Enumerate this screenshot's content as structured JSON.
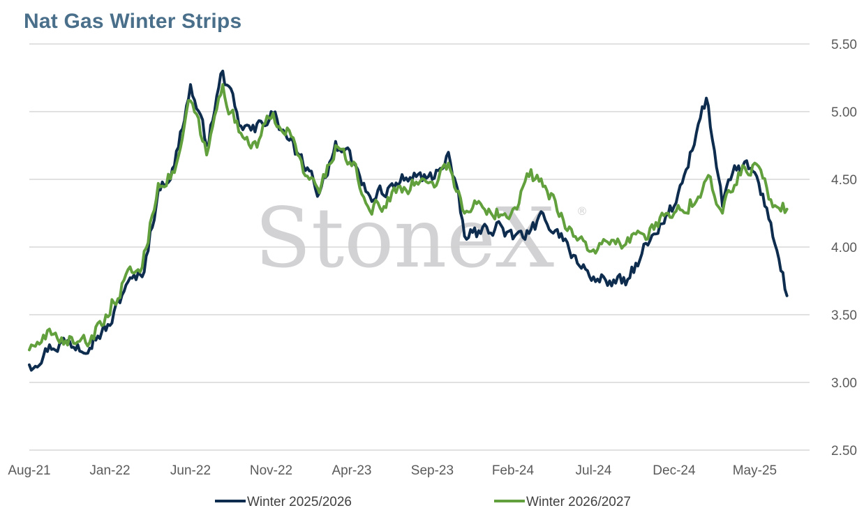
{
  "chart_data": {
    "type": "line",
    "title": "Nat Gas Winter Strips",
    "xlabel": "",
    "ylabel": "",
    "ylim": [
      2.5,
      5.5
    ],
    "yticks": [
      "5.50",
      "5.00",
      "4.50",
      "4.00",
      "3.50",
      "3.00",
      "2.50"
    ],
    "x_tick_labels": [
      "Aug-21",
      "Jan-22",
      "Jun-22",
      "Nov-22",
      "Apr-23",
      "Sep-23",
      "Feb-24",
      "Jul-24",
      "Dec-24",
      "May-25"
    ],
    "x_range": [
      "Aug-21",
      "Jul-25"
    ],
    "grid": "horizontal",
    "legend": "bottom",
    "watermark": "StoneX",
    "watermark_mark": "®",
    "series": [
      {
        "name": "Winter 2025/2026",
        "color": "#0d2c4e",
        "points": [
          [
            "Aug-21",
            3.13
          ],
          [
            "Sep-21",
            3.25
          ],
          [
            "Oct-21",
            3.3
          ],
          [
            "Nov-21",
            3.28
          ],
          [
            "Dec-21",
            3.34
          ],
          [
            "Jan-22",
            3.42
          ],
          [
            "Feb-22",
            3.72
          ],
          [
            "Mar-22",
            3.78
          ],
          [
            "Apr-22",
            4.42
          ],
          [
            "May-22",
            4.6
          ],
          [
            "Jun-22",
            5.2
          ],
          [
            "Jul-22",
            4.75
          ],
          [
            "Aug-22",
            5.3
          ],
          [
            "Sep-22",
            4.9
          ],
          [
            "Oct-22",
            4.85
          ],
          [
            "Nov-22",
            5.0
          ],
          [
            "Dec-22",
            4.8
          ],
          [
            "Jan-23",
            4.6
          ],
          [
            "Feb-23",
            4.4
          ],
          [
            "Mar-23",
            4.78
          ],
          [
            "Apr-23",
            4.62
          ],
          [
            "May-23",
            4.4
          ],
          [
            "Jun-23",
            4.38
          ],
          [
            "Jul-23",
            4.48
          ],
          [
            "Aug-23",
            4.52
          ],
          [
            "Sep-23",
            4.5
          ],
          [
            "Oct-23",
            4.7
          ],
          [
            "Nov-23",
            4.08
          ],
          [
            "Dec-23",
            4.1
          ],
          [
            "Jan-24",
            4.18
          ],
          [
            "Feb-24",
            4.06
          ],
          [
            "Mar-24",
            4.1
          ],
          [
            "Apr-24",
            4.2
          ],
          [
            "May-24",
            4.1
          ],
          [
            "Jun-24",
            3.88
          ],
          [
            "Jul-24",
            3.78
          ],
          [
            "Aug-24",
            3.75
          ],
          [
            "Sep-24",
            3.72
          ],
          [
            "Oct-24",
            3.95
          ],
          [
            "Nov-24",
            4.1
          ],
          [
            "Dec-24",
            4.3
          ],
          [
            "Jan-25",
            4.7
          ],
          [
            "Feb-25",
            5.1
          ],
          [
            "Mar-25",
            4.3
          ],
          [
            "Apr-25",
            4.6
          ],
          [
            "May-25",
            4.55
          ],
          [
            "Jun-25",
            4.18
          ],
          [
            "Jul-25",
            3.64
          ]
        ]
      },
      {
        "name": "Winter 2026/2027",
        "color": "#62a03d",
        "points": [
          [
            "Aug-21",
            3.24
          ],
          [
            "Sep-21",
            3.32
          ],
          [
            "Oct-21",
            3.33
          ],
          [
            "Nov-21",
            3.3
          ],
          [
            "Dec-21",
            3.32
          ],
          [
            "Jan-22",
            3.5
          ],
          [
            "Feb-22",
            3.8
          ],
          [
            "Mar-22",
            3.85
          ],
          [
            "Apr-22",
            4.47
          ],
          [
            "May-22",
            4.55
          ],
          [
            "Jun-22",
            5.08
          ],
          [
            "Jul-22",
            4.68
          ],
          [
            "Aug-22",
            5.2
          ],
          [
            "Sep-22",
            4.85
          ],
          [
            "Oct-22",
            4.78
          ],
          [
            "Nov-22",
            4.95
          ],
          [
            "Dec-22",
            4.88
          ],
          [
            "Jan-23",
            4.55
          ],
          [
            "Feb-23",
            4.4
          ],
          [
            "Mar-23",
            4.75
          ],
          [
            "Apr-23",
            4.6
          ],
          [
            "May-23",
            4.3
          ],
          [
            "Jun-23",
            4.3
          ],
          [
            "Jul-23",
            4.45
          ],
          [
            "Aug-23",
            4.48
          ],
          [
            "Sep-23",
            4.48
          ],
          [
            "Oct-23",
            4.62
          ],
          [
            "Nov-23",
            4.25
          ],
          [
            "Dec-23",
            4.32
          ],
          [
            "Jan-24",
            4.28
          ],
          [
            "Feb-24",
            4.28
          ],
          [
            "Mar-24",
            4.52
          ],
          [
            "Apr-24",
            4.45
          ],
          [
            "May-24",
            4.25
          ],
          [
            "Jun-24",
            4.05
          ],
          [
            "Jul-24",
            3.98
          ],
          [
            "Aug-24",
            4.02
          ],
          [
            "Sep-24",
            4.02
          ],
          [
            "Oct-24",
            4.1
          ],
          [
            "Nov-24",
            4.15
          ],
          [
            "Dec-24",
            4.25
          ],
          [
            "Jan-25",
            4.35
          ],
          [
            "Feb-25",
            4.5
          ],
          [
            "Mar-25",
            4.25
          ],
          [
            "Apr-25",
            4.55
          ],
          [
            "May-25",
            4.62
          ],
          [
            "Jun-25",
            4.35
          ],
          [
            "Jul-25",
            4.28
          ]
        ]
      }
    ]
  }
}
